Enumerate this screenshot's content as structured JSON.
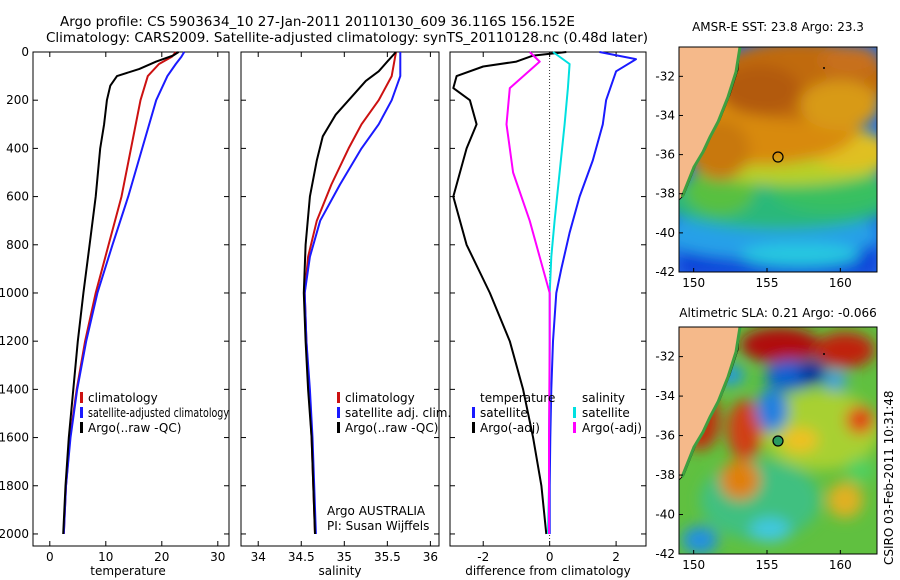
{
  "title": {
    "line1": "Argo profile: CS 5903634_10 27-Jan-2011 20110130_609 36.116S 156.152E",
    "line2": "Climatology: CARS2009. Satellite-adjusted climatology: synTS_20110128.nc (0.48d later)"
  },
  "credit": {
    "line1": "Argo AUSTRALIA",
    "line2": "PI: Susan Wijffels"
  },
  "footer": "CSIRO 03-Feb-2011 10:31:48",
  "colors": {
    "argo": "#000000",
    "climatology": "#cc1111",
    "satellite": "#1a1aff",
    "sat_salinity": "#00e0e0",
    "adj_salinity": "#ff00ff",
    "land": "#f5b98a"
  },
  "chart_data": [
    {
      "type": "line",
      "id": "temperature",
      "xlabel": "temperature",
      "ylabel": "",
      "xlim": [
        -3,
        32
      ],
      "ylim": [
        2050,
        0
      ],
      "xticks": [
        0,
        10,
        20,
        30
      ],
      "yticks": [
        0,
        200,
        400,
        600,
        800,
        1000,
        1200,
        1400,
        1600,
        1800,
        2000
      ],
      "legend": [
        "climatology",
        "satellite-adjusted climatology",
        "Argo(..raw -QC)"
      ],
      "legend_position": "bottom-right",
      "series": [
        {
          "name": "climatology",
          "color": "#cc1111",
          "points": [
            [
              22.5,
              0
            ],
            [
              21.8,
              20
            ],
            [
              19.5,
              50
            ],
            [
              17.5,
              100
            ],
            [
              16.2,
              200
            ],
            [
              14.5,
              400
            ],
            [
              12.8,
              600
            ],
            [
              10.5,
              800
            ],
            [
              8.2,
              1000
            ],
            [
              6.3,
              1200
            ],
            [
              4.8,
              1400
            ],
            [
              3.6,
              1600
            ],
            [
              2.9,
              1800
            ],
            [
              2.5,
              2000
            ]
          ]
        },
        {
          "name": "satellite-adjusted climatology",
          "color": "#1a1aff",
          "points": [
            [
              24,
              0
            ],
            [
              23.5,
              20
            ],
            [
              22.5,
              50
            ],
            [
              21,
              100
            ],
            [
              19,
              200
            ],
            [
              16.5,
              400
            ],
            [
              14,
              600
            ],
            [
              11.2,
              800
            ],
            [
              8.5,
              1000
            ],
            [
              6.5,
              1200
            ],
            [
              4.9,
              1400
            ],
            [
              3.7,
              1600
            ],
            [
              2.9,
              1800
            ],
            [
              2.5,
              2000
            ]
          ]
        },
        {
          "name": "Argo(..raw -QC)",
          "color": "#000000",
          "points": [
            [
              23,
              0
            ],
            [
              22,
              15
            ],
            [
              19,
              40
            ],
            [
              16,
              70
            ],
            [
              12,
              100
            ],
            [
              10.8,
              140
            ],
            [
              10.2,
              200
            ],
            [
              9.7,
              300
            ],
            [
              9,
              400
            ],
            [
              8.2,
              600
            ],
            [
              7.1,
              800
            ],
            [
              6,
              1000
            ],
            [
              5,
              1200
            ],
            [
              4.2,
              1400
            ],
            [
              3.4,
              1600
            ],
            [
              2.8,
              1800
            ],
            [
              2.4,
              2000
            ]
          ]
        }
      ]
    },
    {
      "type": "line",
      "id": "salinity",
      "xlabel": "salinity",
      "ylabel": "",
      "xlim": [
        33.8,
        36.1
      ],
      "ylim": [
        2050,
        0
      ],
      "xticks": [
        34,
        34.5,
        35,
        35.5,
        36
      ],
      "legend": [
        "climatology",
        "satellite adj. clim.",
        "Argo(..raw -QC)"
      ],
      "legend_position": "bottom-right",
      "series": [
        {
          "name": "climatology",
          "color": "#cc1111",
          "points": [
            [
              35.6,
              0
            ],
            [
              35.55,
              100
            ],
            [
              35.4,
              200
            ],
            [
              35.2,
              300
            ],
            [
              35.05,
              400
            ],
            [
              34.85,
              550
            ],
            [
              34.68,
              700
            ],
            [
              34.58,
              850
            ],
            [
              34.54,
              1000
            ],
            [
              34.56,
              1200
            ],
            [
              34.59,
              1400
            ],
            [
              34.62,
              1600
            ],
            [
              34.64,
              1800
            ],
            [
              34.66,
              2000
            ]
          ]
        },
        {
          "name": "satellite adj. clim.",
          "color": "#1a1aff",
          "points": [
            [
              35.65,
              0
            ],
            [
              35.65,
              100
            ],
            [
              35.55,
              200
            ],
            [
              35.4,
              300
            ],
            [
              35.2,
              400
            ],
            [
              34.95,
              550
            ],
            [
              34.72,
              700
            ],
            [
              34.6,
              850
            ],
            [
              34.54,
              1000
            ],
            [
              34.56,
              1200
            ],
            [
              34.6,
              1400
            ],
            [
              34.63,
              1600
            ],
            [
              34.65,
              1800
            ],
            [
              34.67,
              2000
            ]
          ]
        },
        {
          "name": "Argo(..raw -QC)",
          "color": "#000000",
          "points": [
            [
              35.6,
              0
            ],
            [
              35.5,
              40
            ],
            [
              35.4,
              80
            ],
            [
              35.25,
              120
            ],
            [
              35.1,
              180
            ],
            [
              34.9,
              260
            ],
            [
              34.75,
              350
            ],
            [
              34.68,
              450
            ],
            [
              34.6,
              600
            ],
            [
              34.55,
              800
            ],
            [
              34.53,
              1000
            ],
            [
              34.55,
              1200
            ],
            [
              34.58,
              1400
            ],
            [
              34.62,
              1600
            ],
            [
              34.64,
              1800
            ],
            [
              34.66,
              2000
            ]
          ]
        }
      ]
    },
    {
      "type": "line",
      "id": "difference",
      "xlabel": "difference from climatology",
      "ylabel": "",
      "xlim": [
        -3.0,
        2.9
      ],
      "ylim": [
        2050,
        0
      ],
      "xticks": [
        -2,
        0,
        2
      ],
      "legend_temperature": [
        "temperature",
        "satellite",
        "Argo(-adj)"
      ],
      "legend_salinity": [
        "salinity",
        "satellite",
        "Argo(-adj)"
      ],
      "legend_position": "bottom",
      "series": [
        {
          "name": "temperature satellite",
          "color": "#1a1aff",
          "points": [
            [
              1.5,
              0
            ],
            [
              2.6,
              30
            ],
            [
              2.0,
              80
            ],
            [
              1.7,
              200
            ],
            [
              1.6,
              300
            ],
            [
              1.3,
              450
            ],
            [
              0.9,
              600
            ],
            [
              0.6,
              750
            ],
            [
              0.35,
              900
            ],
            [
              0.2,
              1000
            ],
            [
              0.1,
              1200
            ],
            [
              0.05,
              1400
            ],
            [
              0.02,
              1600
            ],
            [
              0,
              1800
            ],
            [
              0,
              2000
            ]
          ]
        },
        {
          "name": "temperature Argo(-adj)",
          "color": "#000000",
          "points": [
            [
              0.5,
              0
            ],
            [
              -0.5,
              15
            ],
            [
              -1.0,
              40
            ],
            [
              -2.0,
              60
            ],
            [
              -2.8,
              100
            ],
            [
              -2.9,
              150
            ],
            [
              -2.4,
              200
            ],
            [
              -2.2,
              300
            ],
            [
              -2.5,
              400
            ],
            [
              -2.9,
              600
            ],
            [
              -2.5,
              800
            ],
            [
              -1.8,
              1000
            ],
            [
              -1.2,
              1200
            ],
            [
              -0.8,
              1400
            ],
            [
              -0.5,
              1600
            ],
            [
              -0.25,
              1800
            ],
            [
              -0.1,
              2000
            ]
          ]
        },
        {
          "name": "salinity satellite",
          "color": "#00e0e0",
          "points": [
            [
              0.1,
              0
            ],
            [
              0.6,
              50
            ],
            [
              0.55,
              150
            ],
            [
              0.45,
              300
            ],
            [
              0.3,
              500
            ],
            [
              0.15,
              700
            ],
            [
              0.05,
              850
            ],
            [
              0,
              1000
            ],
            [
              0,
              1200
            ],
            [
              0,
              1400
            ],
            [
              -0.02,
              1600
            ],
            [
              -0.02,
              1800
            ],
            [
              -0.05,
              2000
            ]
          ]
        },
        {
          "name": "salinity Argo(-adj)",
          "color": "#ff00ff",
          "points": [
            [
              -0.6,
              0
            ],
            [
              -0.3,
              40
            ],
            [
              -1.2,
              150
            ],
            [
              -1.3,
              300
            ],
            [
              -1.1,
              500
            ],
            [
              -0.6,
              700
            ],
            [
              -0.2,
              900
            ],
            [
              0,
              1000
            ],
            [
              0,
              1200
            ],
            [
              -0.02,
              1600
            ],
            [
              -0.02,
              2000
            ]
          ]
        }
      ]
    },
    {
      "type": "heatmap",
      "id": "sst_map",
      "title": "AMSR-E SST: 23.8 Argo: 23.3",
      "xlim": [
        149,
        162.5
      ],
      "ylim": [
        -42,
        -30.5
      ],
      "xticks": [
        150,
        155,
        160
      ],
      "yticks": [
        -32,
        -34,
        -36,
        -38,
        -40,
        -42
      ],
      "marker": [
        156.15,
        -36.12
      ]
    },
    {
      "type": "heatmap",
      "id": "sla_map",
      "title": "Altimetric SLA: 0.21 Argo: -0.066",
      "xlim": [
        149,
        162.5
      ],
      "ylim": [
        -42,
        -30.5
      ],
      "xticks": [
        150,
        155,
        160
      ],
      "yticks": [
        -32,
        -34,
        -36,
        -38,
        -40,
        -42
      ],
      "marker": [
        156.15,
        -36.12
      ]
    }
  ]
}
